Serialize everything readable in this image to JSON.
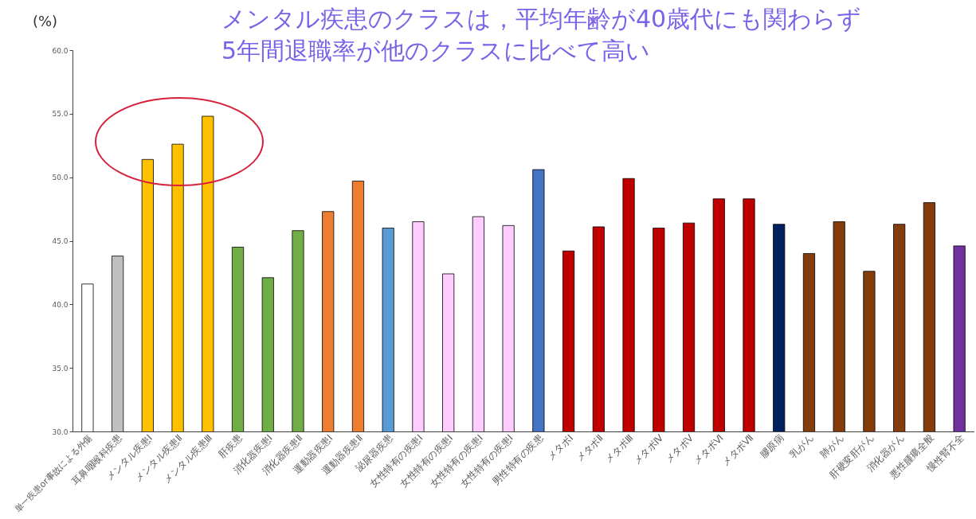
{
  "chart_data": {
    "type": "bar",
    "title": "メンタル疾患のクラスは，平均年齢が40歳代にも関わらず\n5年間退職率が他のクラスに比べて高い",
    "ylabel": "(%)",
    "categories": [
      "単一疾患or事故による外傷",
      "耳鼻咽喉科疾患",
      "メンタル疾患Ⅰ",
      "メンタル疾患Ⅱ",
      "メンタル疾患Ⅲ",
      "肝疾患",
      "消化器疾患Ⅰ",
      "消化器疾患Ⅱ",
      "運動器疾患Ⅰ",
      "運動器疾患Ⅱ",
      "泌尿器疾患",
      "女性特有の疾患Ⅰ",
      "女性特有の疾患Ⅰ",
      "女性特有の疾患Ⅰ",
      "女性特有の疾患Ⅰ",
      "男性特有の疾患",
      "メタボⅠ",
      "メタボⅡ",
      "メタボⅢ",
      "メタボⅣ",
      "メタボⅤ",
      "メタボⅥ",
      "メタボⅦ",
      "膠原病",
      "乳がん",
      "肺がん",
      "肝硬変肝がん",
      "消化器がん",
      "悪性腫瘍全般",
      "慢性腎不全"
    ],
    "values": [
      41.6,
      43.8,
      51.4,
      52.6,
      54.8,
      44.5,
      42.1,
      45.8,
      47.3,
      49.7,
      46.0,
      46.5,
      42.4,
      46.9,
      46.2,
      50.6,
      44.2,
      46.1,
      49.9,
      46.0,
      46.4,
      48.3,
      48.3,
      46.3,
      44.0,
      46.5,
      42.6,
      46.3,
      48.0,
      44.6
    ],
    "colors": [
      "#ffffff",
      "#bfbfbf",
      "#ffc000",
      "#ffc000",
      "#ffc000",
      "#70ad47",
      "#70ad47",
      "#70ad47",
      "#ed7d31",
      "#ed7d31",
      "#5b9bd5",
      "#ffccff",
      "#ffccff",
      "#ffccff",
      "#ffccff",
      "#4472c4",
      "#c00000",
      "#c00000",
      "#c00000",
      "#c00000",
      "#c00000",
      "#c00000",
      "#c00000",
      "#002060",
      "#843c0c",
      "#843c0c",
      "#843c0c",
      "#843c0c",
      "#843c0c",
      "#7030a0"
    ],
    "ylim": [
      30,
      60
    ],
    "yticks": [
      {
        "value": 30,
        "label": "30.0"
      },
      {
        "value": 35,
        "label": "35.0"
      },
      {
        "value": 40,
        "label": "40.0"
      },
      {
        "value": 45,
        "label": "45.0"
      },
      {
        "value": 50,
        "label": "50.0"
      },
      {
        "value": 55,
        "label": "55.0"
      },
      {
        "value": 60,
        "label": "60.0"
      }
    ]
  }
}
